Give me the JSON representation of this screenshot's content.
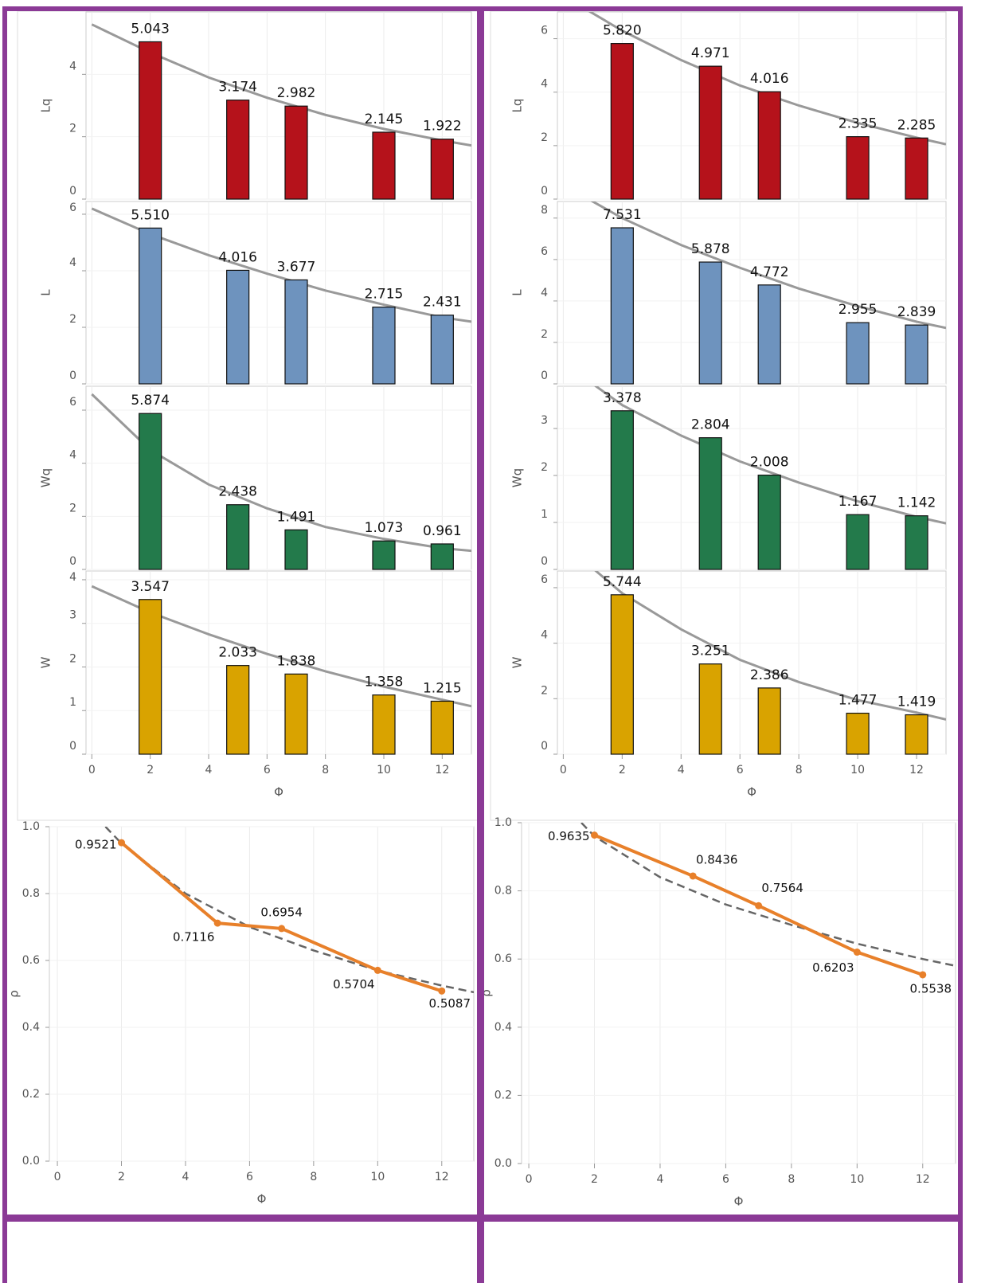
{
  "chart_data": [
    {
      "type": "bar",
      "y_label": "Lq",
      "x": [
        2,
        5,
        7,
        10,
        12
      ],
      "values": [
        5.043,
        3.174,
        2.982,
        2.145,
        1.922
      ],
      "value_labels": [
        "5.043",
        "3.174",
        "2.982",
        "2.145",
        "1.922"
      ],
      "color": "#b5121b",
      "xlim": [
        -0.2,
        13
      ],
      "ylim": [
        0,
        6
      ],
      "yticks": [
        0,
        2,
        4
      ],
      "trend": {
        "x": [
          0,
          2,
          4,
          6,
          8,
          10,
          12,
          13
        ],
        "values": [
          5.6,
          4.7,
          3.9,
          3.25,
          2.7,
          2.25,
          1.88,
          1.72
        ],
        "color": "#999999"
      }
    },
    {
      "type": "bar",
      "y_label": "L",
      "x": [
        2,
        5,
        7,
        10,
        12
      ],
      "values": [
        5.51,
        4.016,
        3.677,
        2.715,
        2.431
      ],
      "value_labels": [
        "5.510",
        "4.016",
        "3.677",
        "2.715",
        "2.431"
      ],
      "color": "#6e93be",
      "xlim": [
        -0.2,
        13
      ],
      "ylim": [
        0,
        6.45
      ],
      "yticks": [
        0,
        2,
        4,
        6
      ],
      "trend": {
        "x": [
          0,
          2,
          4,
          6,
          8,
          10,
          12,
          13
        ],
        "values": [
          6.2,
          5.3,
          4.55,
          3.9,
          3.3,
          2.8,
          2.35,
          2.2
        ],
        "color": "#999999"
      }
    },
    {
      "type": "bar",
      "y_label": "Wq",
      "x": [
        2,
        5,
        7,
        10,
        12
      ],
      "values": [
        5.874,
        2.438,
        1.491,
        1.073,
        0.961
      ],
      "value_labels": [
        "5.874",
        "2.438",
        "1.491",
        "1.073",
        "0.961"
      ],
      "color": "#237a4b",
      "xlim": [
        -0.2,
        13
      ],
      "ylim": [
        0,
        6.9
      ],
      "yticks": [
        0,
        2,
        4,
        6
      ],
      "trend": {
        "x": [
          0,
          2,
          4,
          6,
          8,
          10,
          12,
          13
        ],
        "values": [
          6.6,
          4.5,
          3.2,
          2.3,
          1.6,
          1.15,
          0.8,
          0.7
        ],
        "color": "#999999"
      }
    },
    {
      "type": "bar",
      "y_label": "W",
      "x_label": "Φ",
      "x": [
        2,
        5,
        7,
        10,
        12
      ],
      "values": [
        3.547,
        2.033,
        1.838,
        1.358,
        1.215
      ],
      "value_labels": [
        "3.547",
        "2.033",
        "1.838",
        "1.358",
        "1.215"
      ],
      "color": "#d9a300",
      "xlim": [
        -0.2,
        13
      ],
      "xticks": [
        0,
        2,
        4,
        6,
        8,
        10,
        12
      ],
      "ylim": [
        0,
        4.2
      ],
      "yticks": [
        0,
        1,
        2,
        3,
        4
      ],
      "trend": {
        "x": [
          0,
          2,
          4,
          6,
          8,
          10,
          12,
          13
        ],
        "values": [
          3.85,
          3.25,
          2.75,
          2.3,
          1.9,
          1.55,
          1.25,
          1.1
        ],
        "color": "#999999"
      }
    },
    {
      "type": "line",
      "y_label": "ρ",
      "x_label": "Φ",
      "x": [
        2,
        5,
        7,
        10,
        12
      ],
      "values": [
        0.9521,
        0.7116,
        0.6954,
        0.5704,
        0.5087
      ],
      "color": "#e8802a",
      "xlim": [
        -0.25,
        13
      ],
      "xticks": [
        0,
        2,
        4,
        6,
        8,
        10,
        12
      ],
      "ylim": [
        0,
        1.0
      ],
      "yticks": [
        {
          "value": 0,
          "label": "0.0"
        },
        0.2,
        0.4,
        0.6,
        0.8,
        {
          "value": 1,
          "label": "1.0"
        }
      ],
      "trend": {
        "x": [
          1.5,
          2,
          4,
          6,
          8,
          10,
          12,
          13
        ],
        "values": [
          1.0,
          0.95,
          0.8,
          0.7,
          0.63,
          0.57,
          0.525,
          0.505
        ],
        "color": "#666666"
      }
    },
    {
      "type": "bar",
      "y_label": "Lq",
      "x": [
        2,
        5,
        7,
        10,
        12
      ],
      "values": [
        5.82,
        4.971,
        4.016,
        2.335,
        2.285
      ],
      "value_labels": [
        "5.820",
        "4.971",
        "4.016",
        "2.335",
        "2.285"
      ],
      "color": "#b5121b",
      "xlim": [
        -0.2,
        13
      ],
      "ylim": [
        0,
        7
      ],
      "yticks": [
        0,
        2,
        4,
        6
      ],
      "trend": {
        "x": [
          0,
          2,
          4,
          6,
          8,
          10,
          12,
          13
        ],
        "values": [
          7.6,
          6.3,
          5.2,
          4.25,
          3.5,
          2.85,
          2.3,
          2.05
        ],
        "color": "#999999"
      }
    },
    {
      "type": "bar",
      "y_label": "L",
      "x": [
        2,
        5,
        7,
        10,
        12
      ],
      "values": [
        7.531,
        5.878,
        4.772,
        2.955,
        2.839
      ],
      "value_labels": [
        "7.531",
        "5.878",
        "4.772",
        "2.955",
        "2.839"
      ],
      "color": "#6e93be",
      "xlim": [
        -0.2,
        13
      ],
      "ylim": [
        0,
        8.8
      ],
      "yticks": [
        0,
        2,
        4,
        6,
        8
      ],
      "trend": {
        "x": [
          0,
          2,
          4,
          6,
          8,
          10,
          12,
          13
        ],
        "values": [
          9.6,
          8.0,
          6.7,
          5.6,
          4.6,
          3.75,
          3.0,
          2.7
        ],
        "color": "#999999"
      }
    },
    {
      "type": "bar",
      "y_label": "Wq",
      "x": [
        2,
        5,
        7,
        10,
        12
      ],
      "values": [
        3.378,
        2.804,
        2.008,
        1.167,
        1.142
      ],
      "value_labels": [
        "3.378",
        "2.804",
        "2.008",
        "1.167",
        "1.142"
      ],
      "color": "#237a4b",
      "xlim": [
        -0.2,
        13
      ],
      "ylim": [
        0,
        3.9
      ],
      "yticks": [
        0,
        1,
        2,
        3
      ],
      "trend": {
        "x": [
          0,
          2,
          4,
          6,
          8,
          10,
          12,
          13
        ],
        "values": [
          4.4,
          3.5,
          2.85,
          2.3,
          1.85,
          1.45,
          1.12,
          0.98
        ],
        "color": "#999999"
      }
    },
    {
      "type": "bar",
      "y_label": "W",
      "x_label": "Φ",
      "x": [
        2,
        5,
        7,
        10,
        12
      ],
      "values": [
        5.744,
        3.251,
        2.386,
        1.477,
        1.419
      ],
      "value_labels": [
        "5.744",
        "3.251",
        "2.386",
        "1.477",
        "1.419"
      ],
      "color": "#d9a300",
      "xlim": [
        -0.2,
        13
      ],
      "xticks": [
        0,
        2,
        4,
        6,
        8,
        10,
        12
      ],
      "ylim": [
        0,
        6.6
      ],
      "yticks": [
        0,
        2,
        4,
        6
      ],
      "trend": {
        "x": [
          0,
          2,
          4,
          6,
          8,
          10,
          12,
          13
        ],
        "values": [
          7.6,
          5.8,
          4.5,
          3.4,
          2.6,
          1.95,
          1.5,
          1.25
        ],
        "color": "#999999"
      }
    },
    {
      "type": "line",
      "y_label": "ρ",
      "x_label": "Φ",
      "x": [
        2,
        5,
        7,
        10,
        12
      ],
      "values": [
        0.9635,
        0.8436,
        0.7564,
        0.6203,
        0.5538
      ],
      "color": "#e8802a",
      "xlim": [
        -0.22,
        13
      ],
      "xticks": [
        0,
        2,
        4,
        6,
        8,
        10,
        12
      ],
      "ylim": [
        0,
        1.0
      ],
      "yticks": [
        {
          "value": 0,
          "label": "0.0"
        },
        0.2,
        0.4,
        0.6,
        0.8,
        {
          "value": 1,
          "label": "1.0"
        }
      ],
      "trend": {
        "x": [
          1.6,
          2,
          4,
          6,
          8,
          10,
          12,
          13
        ],
        "values": [
          1.0,
          0.96,
          0.84,
          0.76,
          0.7,
          0.645,
          0.6,
          0.58
        ],
        "color": "#666666"
      }
    }
  ]
}
